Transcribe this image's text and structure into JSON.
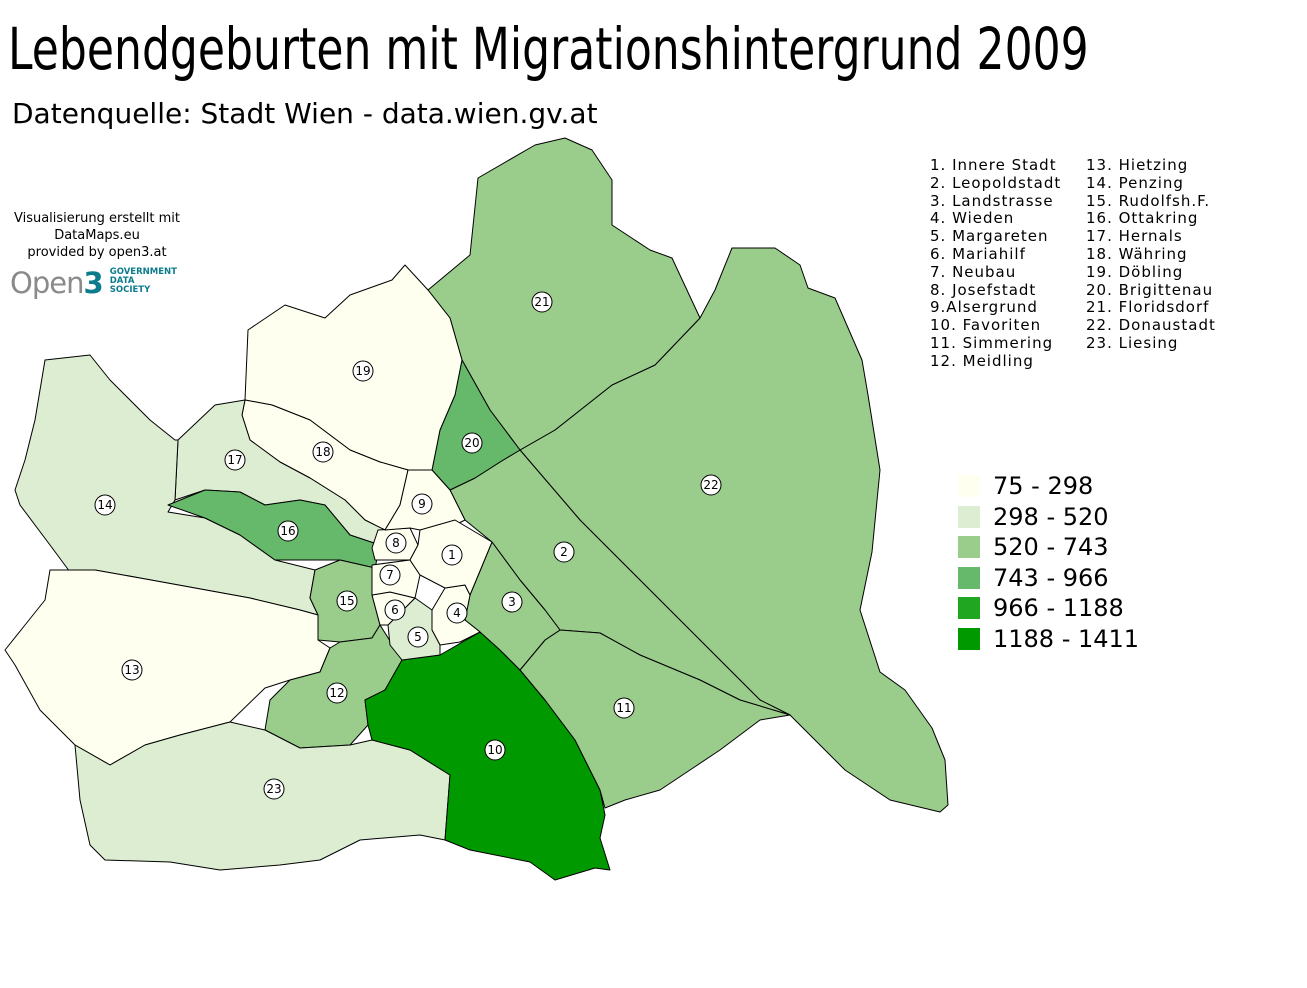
{
  "title": "Lebendgeburten mit Migrationshintergrund 2009",
  "subtitle": "Datenquelle: Stadt Wien - data.wien.gv.at",
  "credit": {
    "line1": "Visualisierung erstellt mit",
    "line2": "DataMaps.eu",
    "line3": "provided by open3.at"
  },
  "logo": {
    "word": "Open",
    "number": "3",
    "tagline": [
      "GOVERNMENT",
      "DATA",
      "SOCIETY"
    ]
  },
  "district_list": [
    "1. Innere Stadt",
    "2. Leopoldstadt",
    "3. Landstrasse",
    "4. Wieden",
    "5. Margareten",
    "6. Mariahilf",
    "7. Neubau",
    "8. Josefstadt",
    "9.Alsergrund",
    "10. Favoriten",
    "11. Simmering",
    "12. Meidling",
    "13. Hietzing",
    "14. Penzing",
    "15. Rudolfsh.F.",
    "16. Ottakring",
    "17. Hernals",
    "18. Währing",
    "19. Döbling",
    "20. Brigittenau",
    "21. Floridsdorf",
    "22. Donaustadt",
    "23. Liesing"
  ],
  "legend": [
    {
      "label": "75 - 298",
      "color": "#fffff0"
    },
    {
      "label": "298 - 520",
      "color": "#dcedd1"
    },
    {
      "label": "520 - 743",
      "color": "#9acc8b"
    },
    {
      "label": "743 - 966",
      "color": "#66b96a"
    },
    {
      "label": "966 - 1188",
      "color": "#21a621"
    },
    {
      "label": "1188 - 1411",
      "color": "#009900"
    }
  ],
  "district_labels": [
    "1",
    "2",
    "3",
    "4",
    "5",
    "6",
    "7",
    "8",
    "9",
    "10",
    "11",
    "12",
    "13",
    "14",
    "15",
    "16",
    "17",
    "18",
    "19",
    "20",
    "21",
    "22",
    "23"
  ],
  "district_class": {
    "1": 0,
    "2": 2,
    "3": 2,
    "4": 0,
    "5": 1,
    "6": 0,
    "7": 0,
    "8": 0,
    "9": 0,
    "10": 5,
    "11": 2,
    "12": 2,
    "13": 0,
    "14": 1,
    "15": 2,
    "16": 3,
    "17": 1,
    "18": 0,
    "19": 0,
    "20": 3,
    "21": 2,
    "22": 2,
    "23": 1
  }
}
